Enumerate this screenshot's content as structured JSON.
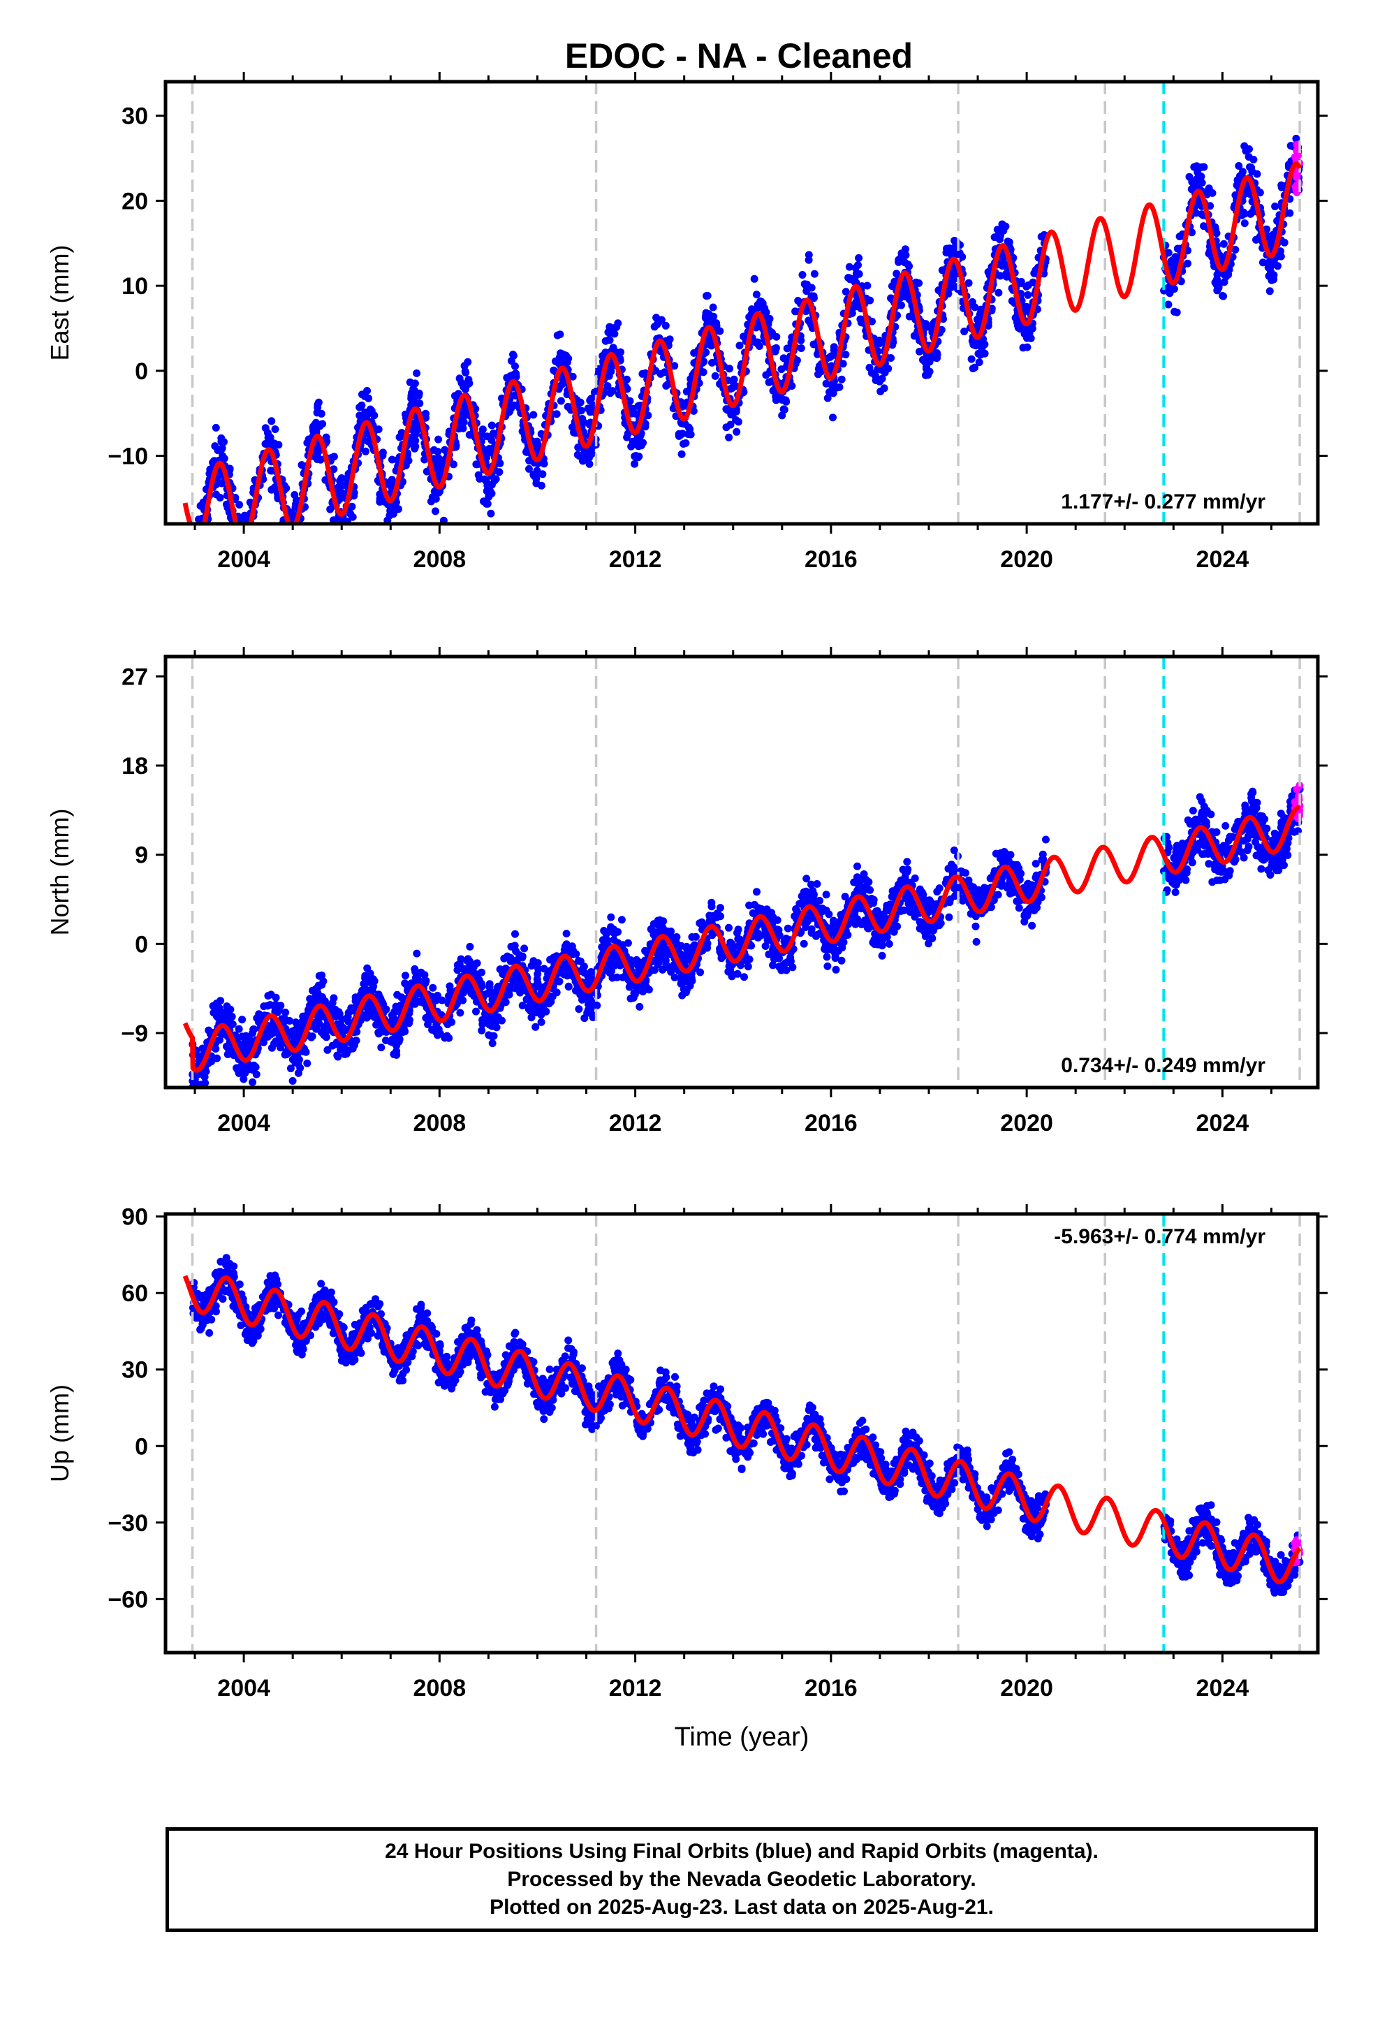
{
  "chart_data": [
    {
      "type": "scatter",
      "title": "EDOC  - NA - Cleaned",
      "ylabel": "East (mm)",
      "xlabel": "",
      "xlim": [
        2002.4,
        2025.95
      ],
      "ylim": [
        -18,
        34
      ],
      "yticks": [
        "30",
        "20",
        "10",
        "0",
        "−10"
      ],
      "ytick_values": [
        30,
        20,
        10,
        0,
        -10
      ],
      "xticks": [
        "2004",
        "2008",
        "2012",
        "2016",
        "2020",
        "2024"
      ],
      "xtick_values": [
        2004,
        2008,
        2012,
        2016,
        2020,
        2024
      ],
      "annotation": "1.177+/- 0.277 mm/yr",
      "annotation_position": "bottom-right",
      "gray_lines": [
        2002.95,
        2011.2,
        2018.6,
        2021.6,
        2025.58
      ],
      "cyan_line": 2022.8,
      "model": {
        "start": 2002.8,
        "end": 2025.58,
        "offset": -14,
        "rate": 1.6,
        "amp": 5,
        "phase": 2003.25,
        "steps": [
          [
            2002.95,
            -3
          ]
        ]
      },
      "series": [
        {
          "color": "#0000ff",
          "ranges": [
            [
              2002.95,
              2020.4
            ],
            [
              2022.8,
              2025.58
            ]
          ],
          "spread": 5
        },
        {
          "color": "#ff00ff",
          "ranges": [
            [
              2025.48,
              2025.58
            ]
          ],
          "spread": 4
        }
      ],
      "grid": false
    },
    {
      "type": "scatter",
      "title": "",
      "ylabel": "North (mm)",
      "xlabel": "",
      "xlim": [
        2002.4,
        2025.95
      ],
      "ylim": [
        -14.5,
        29
      ],
      "yticks": [
        "27",
        "18",
        "9",
        "0",
        "−9"
      ],
      "ytick_values": [
        27,
        18,
        9,
        0,
        -9
      ],
      "xticks": [
        "2004",
        "2008",
        "2012",
        "2016",
        "2020",
        "2024"
      ],
      "xtick_values": [
        2004,
        2008,
        2012,
        2016,
        2020,
        2024
      ],
      "annotation": "0.734+/- 0.249 mm/yr",
      "annotation_position": "bottom-right",
      "gray_lines": [
        2002.95,
        2011.2,
        2018.6,
        2021.6,
        2025.58
      ],
      "cyan_line": 2022.8,
      "model": {
        "start": 2002.8,
        "end": 2025.58,
        "offset": -8,
        "rate": 1.0,
        "amp": 2,
        "phase": 2003.3,
        "steps": [
          [
            2002.95,
            -3
          ]
        ]
      },
      "series": [
        {
          "color": "#0000ff",
          "ranges": [
            [
              2002.95,
              2020.4
            ],
            [
              2022.8,
              2025.58
            ]
          ],
          "spread": 3.5
        },
        {
          "color": "#ff00ff",
          "ranges": [
            [
              2025.48,
              2025.58
            ]
          ],
          "spread": 3
        }
      ],
      "grid": false
    },
    {
      "type": "scatter",
      "title": "",
      "ylabel": "Up (mm)",
      "xlabel": "Time (year)",
      "xlim": [
        2002.4,
        2025.95
      ],
      "ylim": [
        -81,
        91
      ],
      "yticks": [
        "90",
        "60",
        "30",
        "0",
        "−30",
        "−60"
      ],
      "ytick_values": [
        90,
        60,
        30,
        0,
        -30,
        -60
      ],
      "xticks": [
        "2004",
        "2008",
        "2012",
        "2016",
        "2020",
        "2024"
      ],
      "xtick_values": [
        2004,
        2008,
        2012,
        2016,
        2020,
        2024
      ],
      "annotation": "-5.963+/- 0.774 mm/yr",
      "annotation_position": "top-right",
      "gray_lines": [
        2002.95,
        2011.2,
        2018.6,
        2021.6,
        2025.58
      ],
      "cyan_line": 2022.8,
      "model": {
        "start": 2002.8,
        "end": 2025.58,
        "offset": 62,
        "rate": -4.8,
        "amp": 8,
        "phase": 2003.4,
        "steps": []
      },
      "series": [
        {
          "color": "#0000ff",
          "ranges": [
            [
              2002.95,
              2020.4
            ],
            [
              2022.8,
              2025.58
            ]
          ],
          "spread": 10
        },
        {
          "color": "#ff00ff",
          "ranges": [
            [
              2025.48,
              2025.58
            ]
          ],
          "spread": 7
        }
      ],
      "grid": false
    }
  ],
  "footer": {
    "line1": "24 Hour Positions Using Final Orbits (blue) and Rapid Orbits (magenta).",
    "line2": "Processed by the Nevada Geodetic Laboratory.",
    "line3": "Plotted on 2025-Aug-23. Last data on 2025-Aug-21."
  }
}
